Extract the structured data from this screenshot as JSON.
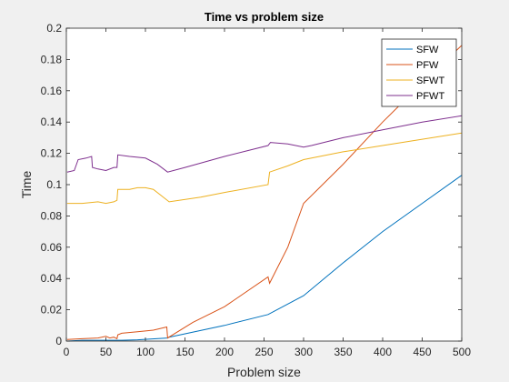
{
  "chart_data": {
    "type": "line",
    "title": "Time vs problem size",
    "xlabel": "Problem size",
    "ylabel": "Time",
    "xlim": [
      0,
      500
    ],
    "ylim": [
      0,
      0.2
    ],
    "xticks": [
      "0",
      "50",
      "100",
      "150",
      "200",
      "250",
      "300",
      "350",
      "400",
      "450",
      "500"
    ],
    "yticks": [
      "0",
      "0.02",
      "0.04",
      "0.06",
      "0.08",
      "0.1",
      "0.12",
      "0.14",
      "0.16",
      "0.18",
      "0.2"
    ],
    "grid": false,
    "legend_position": "top-right",
    "series": [
      {
        "name": "SFW",
        "color": "#0072BD",
        "points": [
          [
            1,
            0.0
          ],
          [
            20,
            0.0005
          ],
          [
            50,
            0.0005
          ],
          [
            70,
            0.0005
          ],
          [
            90,
            0.0008
          ],
          [
            128,
            0.002
          ],
          [
            130,
            0.0025
          ],
          [
            200,
            0.01
          ],
          [
            255,
            0.017
          ],
          [
            300,
            0.029
          ],
          [
            350,
            0.05
          ],
          [
            400,
            0.07
          ],
          [
            450,
            0.088
          ],
          [
            500,
            0.106
          ]
        ]
      },
      {
        "name": "PFW",
        "color": "#D95319",
        "points": [
          [
            1,
            0.001
          ],
          [
            20,
            0.0015
          ],
          [
            40,
            0.002
          ],
          [
            50,
            0.003
          ],
          [
            55,
            0.002
          ],
          [
            60,
            0.0025
          ],
          [
            64,
            0.0015
          ],
          [
            65,
            0.004
          ],
          [
            70,
            0.005
          ],
          [
            90,
            0.006
          ],
          [
            110,
            0.007
          ],
          [
            127,
            0.009
          ],
          [
            128,
            0.002
          ],
          [
            160,
            0.012
          ],
          [
            200,
            0.022
          ],
          [
            255,
            0.041
          ],
          [
            257,
            0.037
          ],
          [
            280,
            0.06
          ],
          [
            300,
            0.088
          ],
          [
            350,
            0.113
          ],
          [
            400,
            0.14
          ],
          [
            450,
            0.165
          ],
          [
            500,
            0.189
          ]
        ]
      },
      {
        "name": "SFWT",
        "color": "#EDB120",
        "points": [
          [
            1,
            0.088
          ],
          [
            20,
            0.088
          ],
          [
            40,
            0.089
          ],
          [
            50,
            0.088
          ],
          [
            60,
            0.089
          ],
          [
            64,
            0.09
          ],
          [
            65,
            0.097
          ],
          [
            80,
            0.097
          ],
          [
            90,
            0.098
          ],
          [
            100,
            0.098
          ],
          [
            110,
            0.097
          ],
          [
            125,
            0.091
          ],
          [
            130,
            0.089
          ],
          [
            170,
            0.092
          ],
          [
            200,
            0.095
          ],
          [
            255,
            0.1
          ],
          [
            257,
            0.108
          ],
          [
            280,
            0.112
          ],
          [
            300,
            0.116
          ],
          [
            350,
            0.121
          ],
          [
            400,
            0.125
          ],
          [
            450,
            0.129
          ],
          [
            500,
            0.133
          ]
        ]
      },
      {
        "name": "PFWT",
        "color": "#7E2F8E",
        "points": [
          [
            1,
            0.108
          ],
          [
            10,
            0.109
          ],
          [
            15,
            0.116
          ],
          [
            25,
            0.117
          ],
          [
            32,
            0.118
          ],
          [
            33,
            0.111
          ],
          [
            40,
            0.11
          ],
          [
            50,
            0.109
          ],
          [
            60,
            0.111
          ],
          [
            64,
            0.111
          ],
          [
            65,
            0.119
          ],
          [
            80,
            0.118
          ],
          [
            100,
            0.117
          ],
          [
            115,
            0.113
          ],
          [
            128,
            0.108
          ],
          [
            150,
            0.111
          ],
          [
            200,
            0.118
          ],
          [
            255,
            0.125
          ],
          [
            258,
            0.127
          ],
          [
            280,
            0.126
          ],
          [
            300,
            0.124
          ],
          [
            310,
            0.125
          ],
          [
            350,
            0.13
          ],
          [
            400,
            0.135
          ],
          [
            450,
            0.14
          ],
          [
            500,
            0.144
          ]
        ]
      }
    ]
  }
}
